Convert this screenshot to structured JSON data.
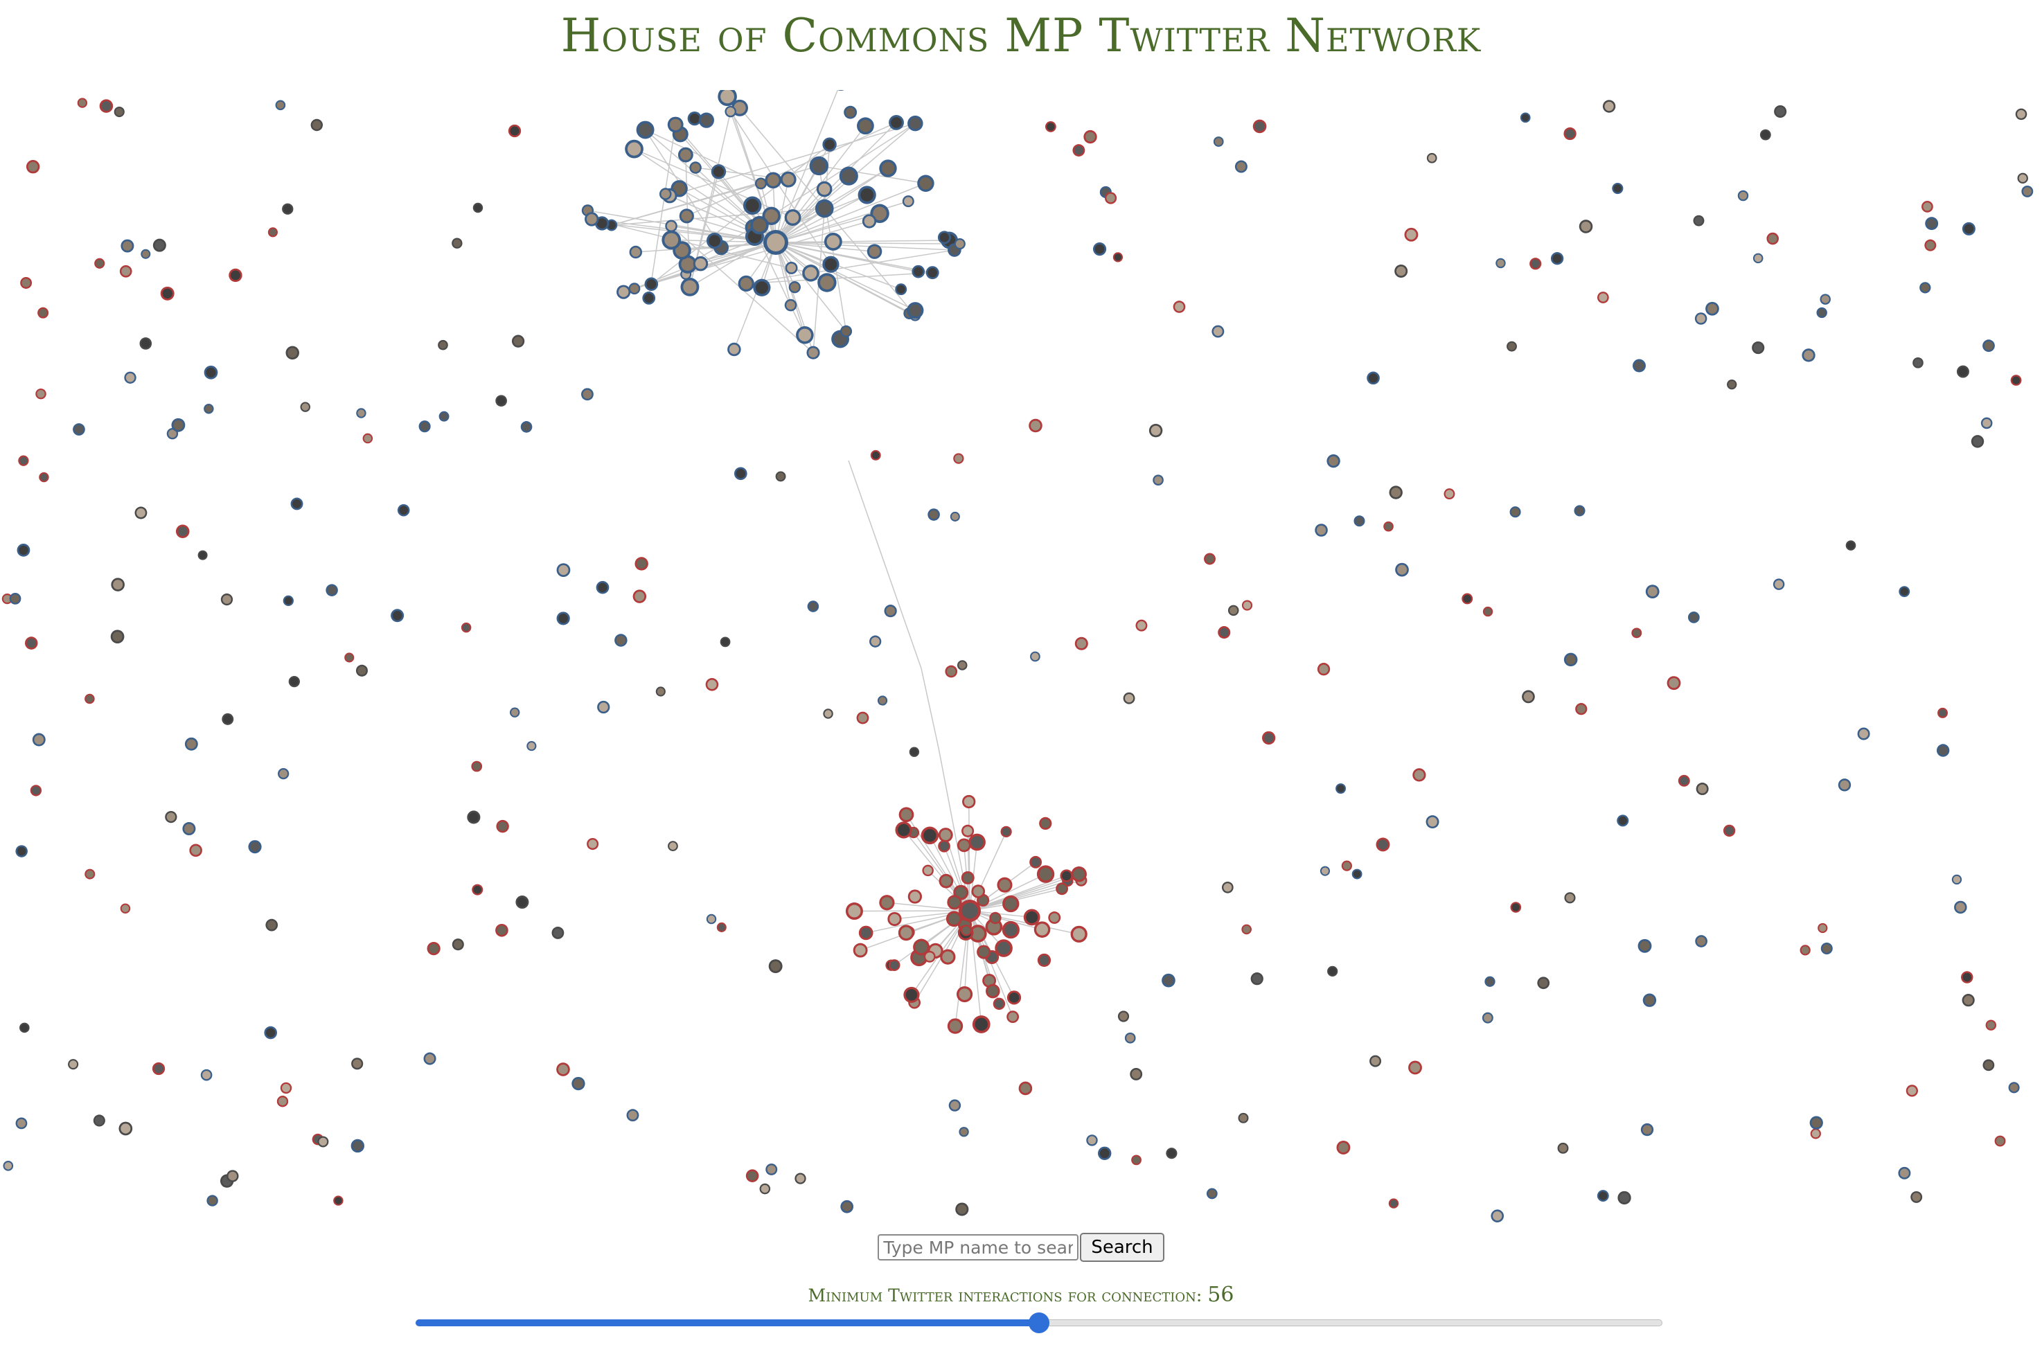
{
  "page": {
    "title": "House of Commons MP Twitter Network"
  },
  "network": {
    "cluster_colors": {
      "conservative": "#3a5f8a",
      "labour": "#b23a3a",
      "other": "#4a4a4a"
    },
    "edge_color": "#c8c8c8"
  },
  "search": {
    "placeholder": "Type MP name to search",
    "button_label": "Search"
  },
  "slider": {
    "label": "Minimum Twitter interactions for connection:",
    "value": "56",
    "fraction": 0.5
  }
}
